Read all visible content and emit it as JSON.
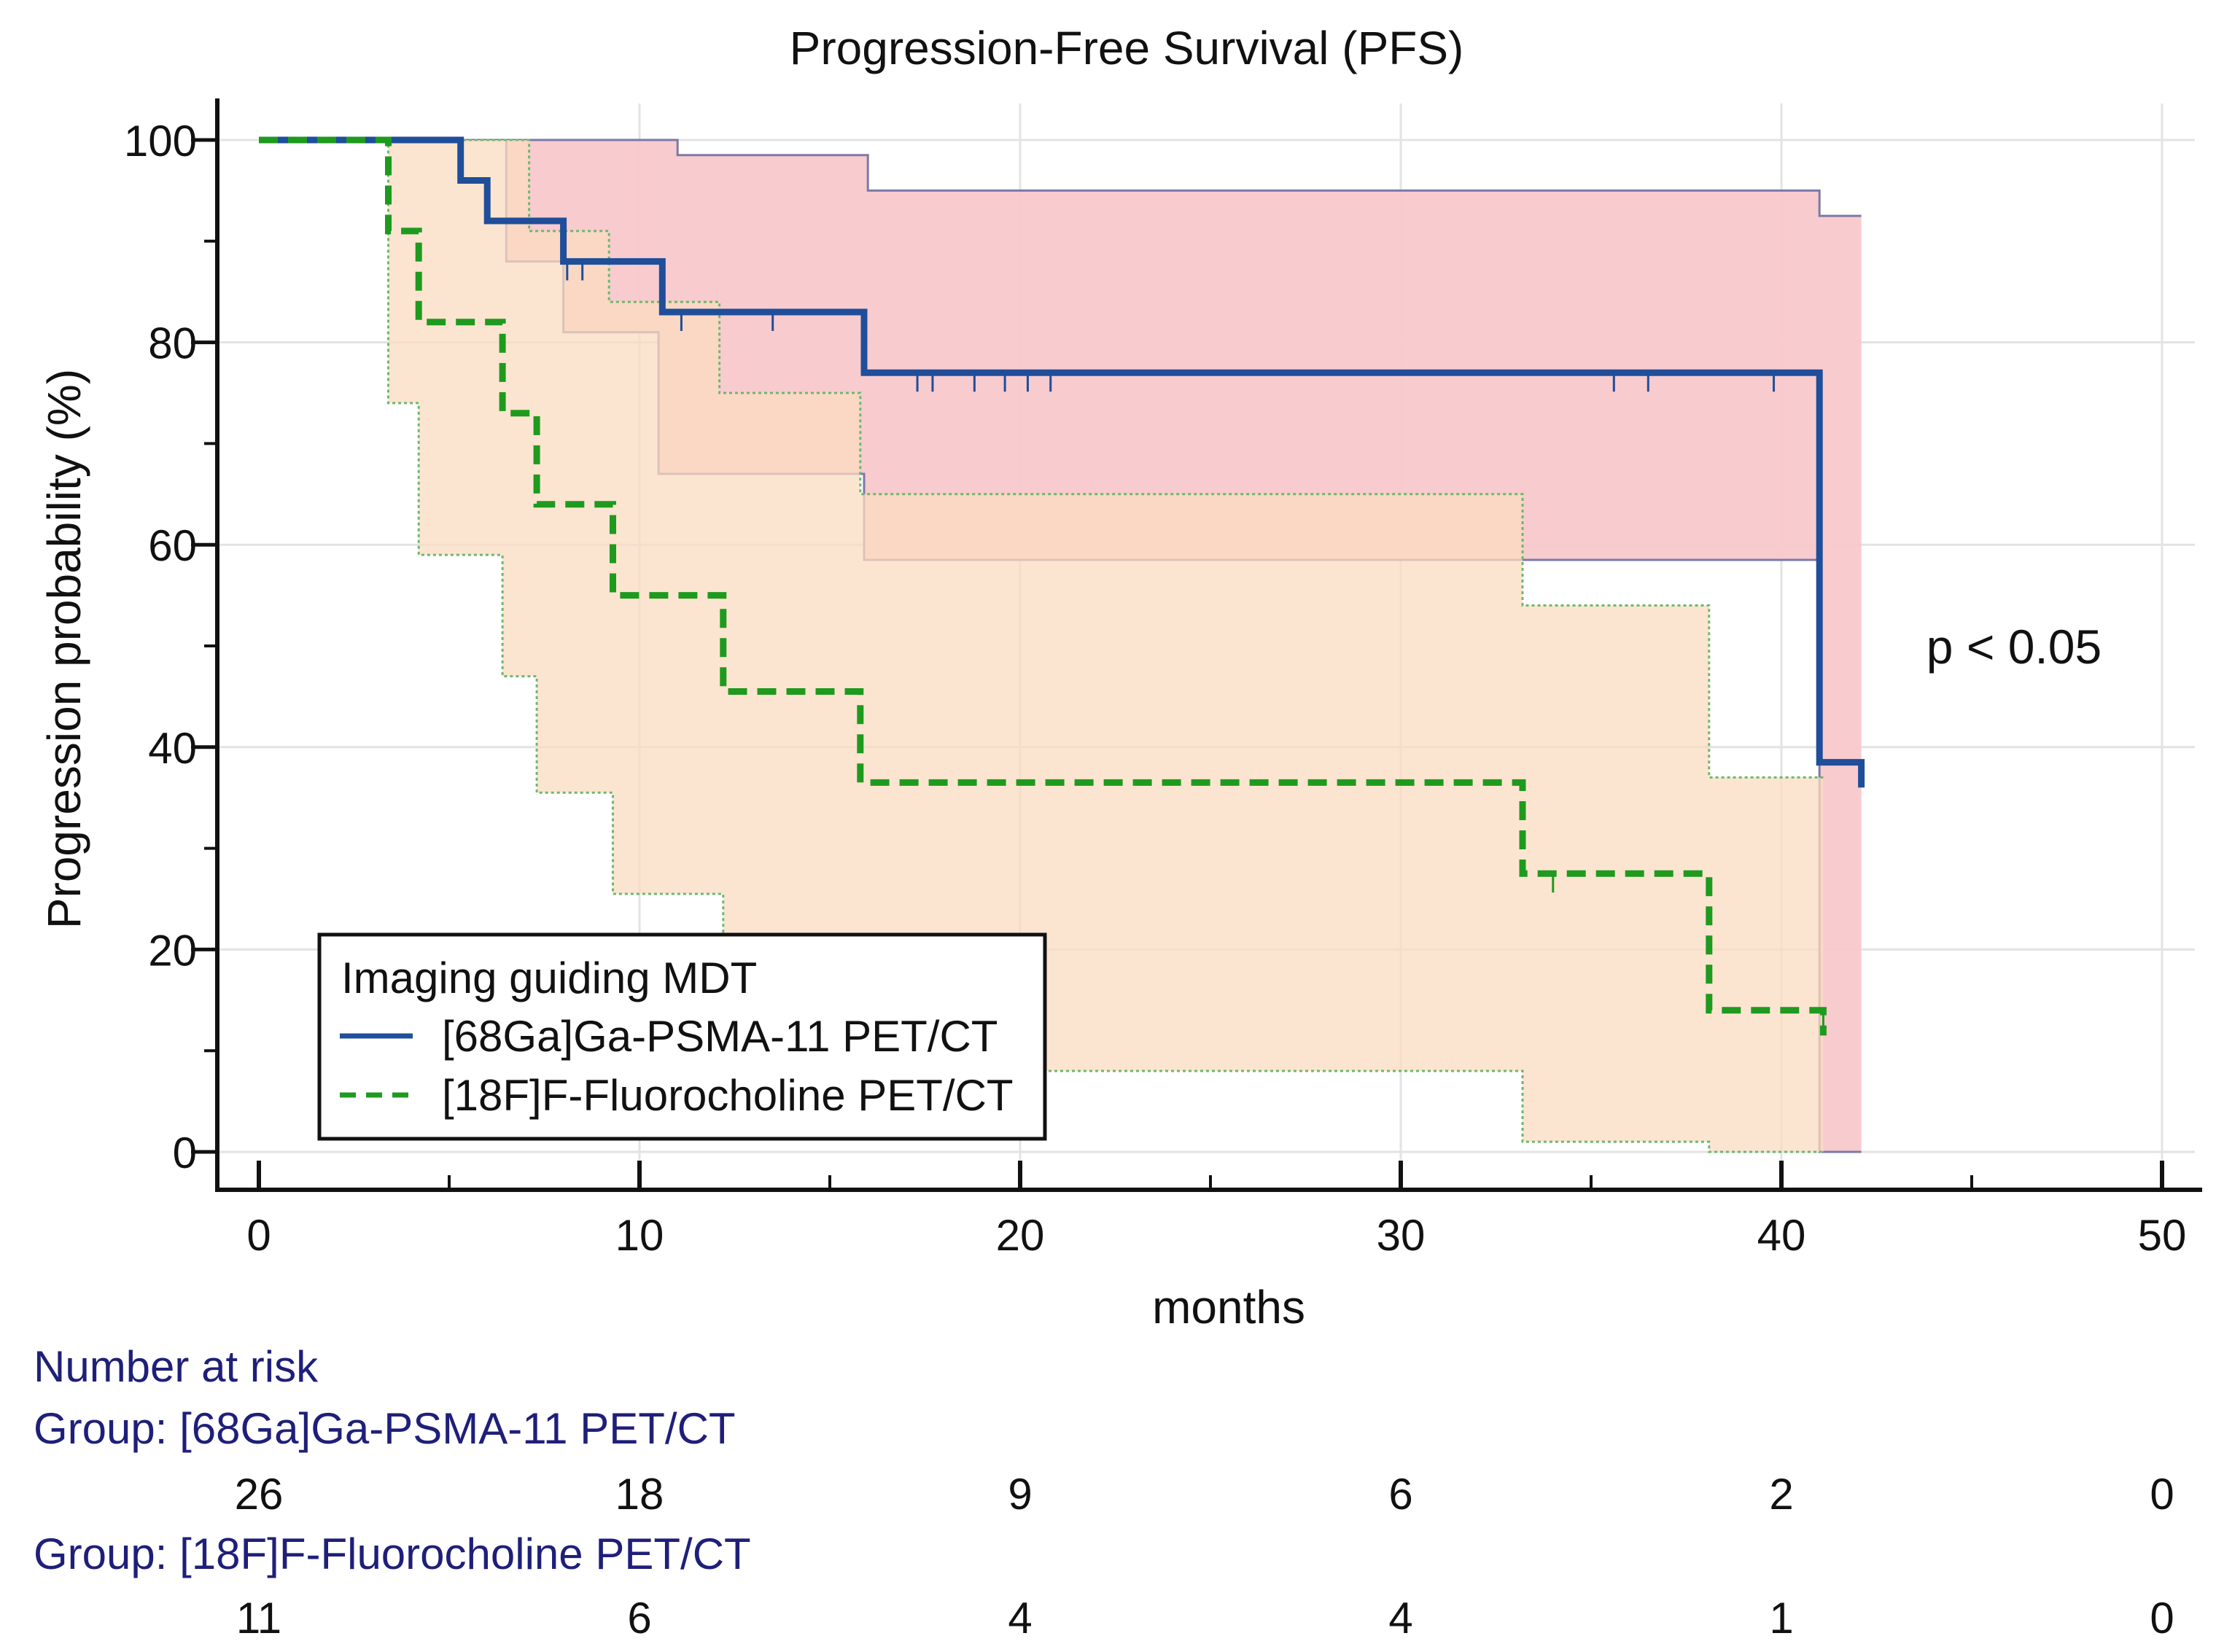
{
  "chart_data": {
    "type": "line",
    "subtype": "kaplan-meier",
    "title": "Progression-Free Survival (PFS)",
    "xlabel": "months",
    "ylabel": "Progression probability (%)",
    "xlim": [
      0,
      50
    ],
    "ylim": [
      0,
      100
    ],
    "xticks": [
      0,
      10,
      20,
      30,
      40,
      50
    ],
    "yticks": [
      0,
      20,
      40,
      60,
      80,
      100
    ],
    "xtick_labels": [
      "0",
      "10",
      "20",
      "30",
      "40",
      "50"
    ],
    "ytick_labels": [
      "0",
      "20",
      "40",
      "60",
      "80",
      "100"
    ],
    "grid": true,
    "annotation": "p < 0.05",
    "legend": {
      "title": "Imaging guiding MDT",
      "position": "bottom-left",
      "entries": [
        "[68Ga]Ga-PSMA-11 PET/CT",
        "[18F]F-Fluorocholine PET/CT"
      ]
    },
    "series": [
      {
        "name": "[68Ga]Ga-PSMA-11 PET/CT",
        "style": "solid",
        "color": "#1f4e9a",
        "ci_fill": "#f8c8cc",
        "x": [
          0,
          5.3,
          6.0,
          7.1,
          8.0,
          10.6,
          15.9,
          41.0,
          42.1
        ],
        "y": [
          100,
          96,
          92,
          92,
          88,
          83,
          77,
          38.5,
          36
        ],
        "ci_upper": [
          {
            "x": 0,
            "y": 100
          },
          {
            "x": 11,
            "y": 98.5
          },
          {
            "x": 16,
            "y": 95
          },
          {
            "x": 41,
            "y": 92.5
          },
          {
            "x": 42.1,
            "y": 92.5
          }
        ],
        "ci_lower": [
          {
            "x": 0,
            "y": 100
          },
          {
            "x": 5.3,
            "y": 100
          },
          {
            "x": 6.5,
            "y": 88
          },
          {
            "x": 8.0,
            "y": 81
          },
          {
            "x": 10.5,
            "y": 67
          },
          {
            "x": 15.9,
            "y": 58.5
          },
          {
            "x": 41,
            "y": 0
          },
          {
            "x": 42.1,
            "y": 0
          }
        ],
        "censored": [
          {
            "x": 8.1,
            "y": 88
          },
          {
            "x": 8.5,
            "y": 88
          },
          {
            "x": 11.1,
            "y": 83
          },
          {
            "x": 13.5,
            "y": 83
          },
          {
            "x": 17.3,
            "y": 77
          },
          {
            "x": 17.7,
            "y": 77
          },
          {
            "x": 18.8,
            "y": 77
          },
          {
            "x": 19.6,
            "y": 77
          },
          {
            "x": 20.2,
            "y": 77
          },
          {
            "x": 20.8,
            "y": 77
          },
          {
            "x": 35.6,
            "y": 77
          },
          {
            "x": 36.5,
            "y": 77
          },
          {
            "x": 39.8,
            "y": 77
          }
        ]
      },
      {
        "name": "[18F]F-Fluorocholine PET/CT",
        "style": "dashed",
        "color": "#1e9a1e",
        "ci_fill": "#fbdcc0",
        "x": [
          0,
          3.4,
          4.2,
          6.4,
          7.3,
          9.3,
          12.2,
          15.8,
          33.2,
          38.1,
          41.1
        ],
        "y": [
          100,
          91,
          82,
          73,
          64,
          55,
          45.5,
          36.5,
          27.5,
          14,
          11.5
        ],
        "ci_upper": [
          {
            "x": 0,
            "y": 100
          },
          {
            "x": 7.1,
            "y": 100
          },
          {
            "x": 7.1,
            "y": 91
          },
          {
            "x": 9.2,
            "y": 84
          },
          {
            "x": 12.1,
            "y": 75
          },
          {
            "x": 15.8,
            "y": 65
          },
          {
            "x": 33.2,
            "y": 54
          },
          {
            "x": 38.1,
            "y": 37
          },
          {
            "x": 41.1,
            "y": 37
          }
        ],
        "ci_lower": [
          {
            "x": 0,
            "y": 100
          },
          {
            "x": 3.4,
            "y": 74
          },
          {
            "x": 4.2,
            "y": 59
          },
          {
            "x": 6.4,
            "y": 47
          },
          {
            "x": 7.3,
            "y": 35.5
          },
          {
            "x": 9.3,
            "y": 25.5
          },
          {
            "x": 12.2,
            "y": 8
          },
          {
            "x": 33.2,
            "y": 1
          },
          {
            "x": 38.1,
            "y": 0
          },
          {
            "x": 41.1,
            "y": 0
          }
        ],
        "censored": [
          {
            "x": 34.0,
            "y": 27.5
          },
          {
            "x": 41.1,
            "y": 14
          }
        ]
      }
    ],
    "risk_table": {
      "title": "Number at risk",
      "times": [
        0,
        10,
        20,
        30,
        40,
        50
      ],
      "groups": [
        {
          "label": "Group: [68Ga]Ga-PSMA-11 PET/CT",
          "counts": [
            26,
            18,
            9,
            6,
            2,
            0
          ]
        },
        {
          "label": "Group: [18F]F-Fluorocholine PET/CT",
          "counts": [
            11,
            6,
            4,
            4,
            1,
            0
          ]
        }
      ]
    }
  }
}
